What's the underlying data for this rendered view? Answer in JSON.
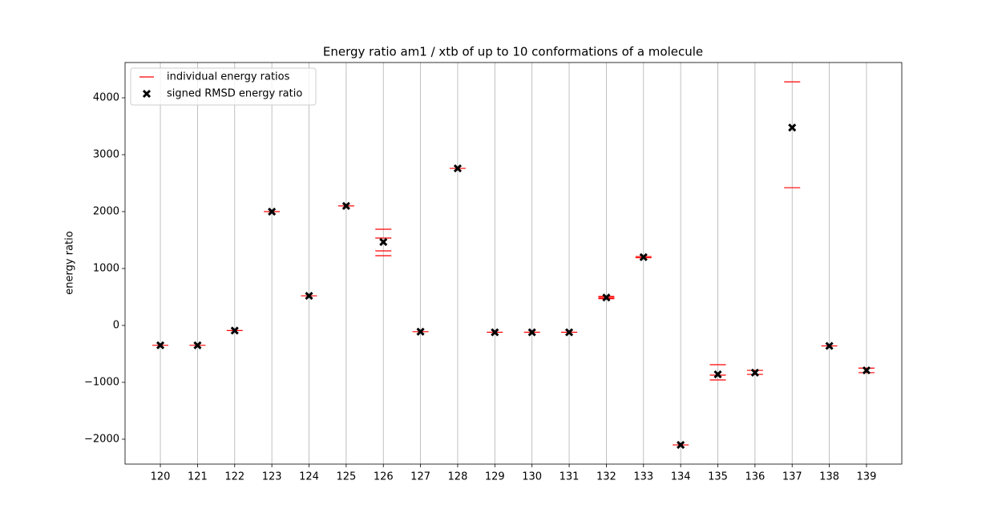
{
  "chart_data": {
    "type": "dot-range",
    "title": "Energy ratio am1 / xtb of up to 10 conformations of a molecule",
    "y_label": "energy ratio",
    "categories": [
      "120",
      "121",
      "122",
      "123",
      "124",
      "125",
      "126",
      "127",
      "128",
      "129",
      "130",
      "131",
      "132",
      "133",
      "134",
      "135",
      "136",
      "137",
      "138",
      "139"
    ],
    "series": [
      {
        "name": "individual energy ratios",
        "color": "#ff0000",
        "marker": "hline",
        "values": [
          [
            -350
          ],
          [
            -350
          ],
          [
            -90
          ],
          [
            2000
          ],
          [
            520
          ],
          [
            2100
          ],
          [
            1690,
            1535,
            1310,
            1225
          ],
          [
            -110
          ],
          [
            2760
          ],
          [
            -120
          ],
          [
            -120
          ],
          [
            -120
          ],
          [
            470,
            490,
            510
          ],
          [
            1190,
            1210
          ],
          [
            -2100
          ],
          [
            -690,
            -873,
            -958
          ],
          [
            -790,
            -860
          ],
          [
            4280,
            2420
          ],
          [
            -360
          ],
          [
            -750,
            -830
          ]
        ]
      },
      {
        "name": "signed RMSD energy ratio",
        "color": "#000000",
        "marker": "x",
        "values": [
          -350,
          -350,
          -90,
          2000,
          520,
          2100,
          1465,
          -110,
          2760,
          -120,
          -120,
          -120,
          490,
          1200,
          -2100,
          -860,
          -830,
          3476,
          -360,
          -790
        ]
      }
    ],
    "ylim": [
      -2437,
      4620
    ],
    "yticks": [
      {
        "value": -2000,
        "label": "−2000"
      },
      {
        "value": -1000,
        "label": "−1000"
      },
      0,
      1000,
      2000,
      3000,
      4000
    ],
    "grid": "x",
    "legend": "upper left"
  }
}
